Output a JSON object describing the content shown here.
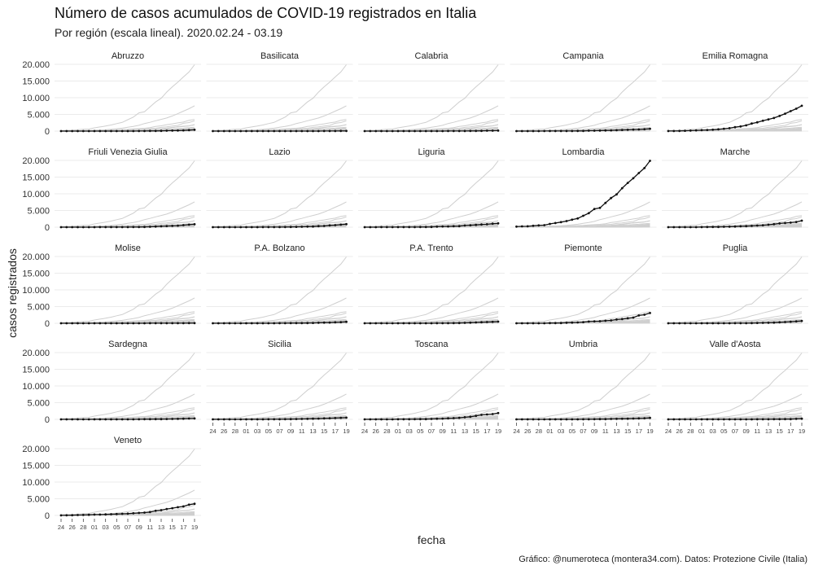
{
  "chart_data": {
    "type": "line",
    "title": "Número de casos acumulados de COVID-19 registrados en Italia",
    "subtitle": "Por región (escala lineal). 2020.02.24 - 03.19",
    "xlabel": "fecha",
    "ylabel": "casos registrados",
    "caption": "Gráfico: @numeroteca (montera34.com). Datos: Protezione Civile (Italia)",
    "ylim": [
      0,
      20000
    ],
    "yticks": [
      0,
      5000,
      10000,
      15000,
      20000
    ],
    "ytick_labels": [
      "0",
      "5.000",
      "10.000",
      "15.000",
      "20.000"
    ],
    "x": [
      "02-24",
      "02-25",
      "02-26",
      "02-27",
      "02-28",
      "02-29",
      "03-01",
      "03-02",
      "03-03",
      "03-04",
      "03-05",
      "03-06",
      "03-07",
      "03-08",
      "03-09",
      "03-10",
      "03-11",
      "03-12",
      "03-13",
      "03-14",
      "03-15",
      "03-16",
      "03-17",
      "03-18",
      "03-19"
    ],
    "xtick_labels": [
      "24",
      "26",
      "28",
      "01",
      "03",
      "05",
      "07",
      "09",
      "11",
      "13",
      "15",
      "17",
      "19"
    ],
    "grid": true,
    "legend": "none",
    "series": [
      {
        "name": "Abruzzo",
        "values": [
          0,
          0,
          0,
          1,
          1,
          2,
          2,
          5,
          5,
          5,
          6,
          7,
          9,
          11,
          17,
          30,
          38,
          48,
          84,
          112,
          137,
          176,
          229,
          296,
          387
        ]
      },
      {
        "name": "Basilicata",
        "values": [
          0,
          0,
          0,
          0,
          0,
          0,
          0,
          0,
          0,
          1,
          3,
          3,
          5,
          5,
          6,
          7,
          8,
          9,
          10,
          12,
          18,
          26,
          32,
          42,
          55
        ]
      },
      {
        "name": "Calabria",
        "values": [
          0,
          0,
          0,
          1,
          1,
          1,
          1,
          1,
          1,
          1,
          1,
          3,
          4,
          5,
          11,
          13,
          21,
          27,
          31,
          41,
          60,
          81,
          111,
          130,
          157
        ]
      },
      {
        "name": "Campania",
        "values": [
          0,
          0,
          3,
          3,
          4,
          13,
          17,
          17,
          30,
          31,
          31,
          37,
          54,
          111,
          120,
          154,
          196,
          220,
          278,
          335,
          390,
          456,
          495,
          593,
          703
        ]
      },
      {
        "name": "Emilia Romagna",
        "values": [
          18,
          26,
          47,
          97,
          145,
          217,
          285,
          335,
          420,
          544,
          698,
          870,
          1180,
          1386,
          1739,
          2263,
          2644,
          3093,
          3522,
          3931,
          4525,
          5214,
          5968,
          6705,
          7588
        ]
      },
      {
        "name": "Friuli Venezia Giulia",
        "values": [
          0,
          0,
          0,
          0,
          0,
          0,
          0,
          18,
          18,
          18,
          18,
          27,
          30,
          40,
          59,
          84,
          124,
          198,
          263,
          332,
          386,
          462,
          605,
          759,
          887
        ]
      },
      {
        "name": "Lazio",
        "values": [
          3,
          3,
          3,
          3,
          3,
          3,
          6,
          6,
          6,
          16,
          21,
          24,
          30,
          40,
          64,
          102,
          130,
          159,
          200,
          308,
          366,
          536,
          606,
          750,
          907
        ]
      },
      {
        "name": "Liguria",
        "values": [
          0,
          1,
          1,
          17,
          19,
          19,
          24,
          25,
          25,
          26,
          45,
          52,
          78,
          135,
          209,
          225,
          298,
          326,
          512,
          579,
          695,
          815,
          889,
          1049,
          1149
        ]
      },
      {
        "name": "Lombardia",
        "values": [
          172,
          240,
          258,
          403,
          531,
          615,
          984,
          1254,
          1520,
          1820,
          2251,
          2612,
          3420,
          4189,
          5469,
          5791,
          7280,
          8725,
          9820,
          11685,
          13272,
          14649,
          16220,
          17713,
          19884
        ]
      },
      {
        "name": "Marche",
        "values": [
          0,
          0,
          1,
          6,
          11,
          11,
          25,
          46,
          61,
          84,
          123,
          156,
          199,
          271,
          323,
          394,
          479,
          592,
          725,
          899,
          1133,
          1242,
          1371,
          1568,
          1946
        ]
      },
      {
        "name": "Molise",
        "values": [
          0,
          0,
          0,
          0,
          0,
          0,
          0,
          0,
          0,
          0,
          0,
          1,
          1,
          6,
          7,
          10,
          13,
          16,
          16,
          19,
          19,
          23,
          30,
          37,
          44
        ]
      },
      {
        "name": "P.A. Bolzano",
        "values": [
          0,
          0,
          0,
          0,
          1,
          1,
          1,
          1,
          1,
          4,
          9,
          12,
          16,
          21,
          44,
          44,
          55,
          80,
          104,
          146,
          202,
          227,
          283,
          347,
          429
        ]
      },
      {
        "name": "P.A. Trento",
        "values": [
          0,
          0,
          0,
          0,
          0,
          0,
          0,
          0,
          0,
          4,
          4,
          5,
          7,
          16,
          22,
          32,
          52,
          73,
          120,
          172,
          237,
          308,
          370,
          409,
          480
        ]
      },
      {
        "name": "Piemonte",
        "values": [
          0,
          0,
          3,
          3,
          11,
          11,
          51,
          56,
          82,
          143,
          207,
          243,
          350,
          501,
          580,
          600,
          749,
          855,
          1111,
          1276,
          1516,
          1701,
          2341,
          2552,
          3061
        ]
      },
      {
        "name": "Puglia",
        "values": [
          0,
          0,
          1,
          1,
          1,
          3,
          3,
          3,
          3,
          3,
          3,
          6,
          20,
          30,
          33,
          60,
          86,
          126,
          158,
          200,
          299,
          378,
          472,
          589,
          700
        ]
      },
      {
        "name": "Sardegna",
        "values": [
          0,
          0,
          0,
          0,
          0,
          0,
          0,
          0,
          1,
          1,
          1,
          3,
          9,
          12,
          24,
          38,
          55,
          68,
          84,
          106,
          120,
          153,
          204,
          244,
          271
        ]
      },
      {
        "name": "Sicilia",
        "values": [
          0,
          0,
          2,
          3,
          3,
          4,
          4,
          4,
          5,
          7,
          18,
          24,
          35,
          53,
          72,
          91,
          117,
          143,
          191,
          222,
          281,
          333,
          386,
          462,
          524
        ]
      },
      {
        "name": "Toscana",
        "values": [
          0,
          2,
          2,
          2,
          2,
          7,
          13,
          13,
          19,
          38,
          61,
          79,
          113,
          166,
          208,
          320,
          364,
          454,
          630,
          781,
          1053,
          1330,
          1458,
          1574,
          1870
        ]
      },
      {
        "name": "Umbria",
        "values": [
          0,
          0,
          0,
          0,
          0,
          0,
          0,
          0,
          3,
          4,
          6,
          9,
          19,
          19,
          37,
          61,
          85,
          111,
          143,
          181,
          199,
          246,
          292,
          347,
          446
        ]
      },
      {
        "name": "Valle d'Aosta",
        "values": [
          0,
          0,
          0,
          0,
          0,
          0,
          0,
          0,
          0,
          0,
          0,
          0,
          0,
          2,
          9,
          10,
          18,
          29,
          33,
          40,
          50,
          61,
          85,
          153,
          194
        ]
      },
      {
        "name": "Veneto",
        "values": [
          33,
          43,
          71,
          111,
          151,
          191,
          263,
          273,
          307,
          360,
          407,
          488,
          543,
          670,
          744,
          856,
          1023,
          1384,
          1595,
          1937,
          2172,
          2473,
          2704,
          3214,
          3484
        ]
      }
    ]
  }
}
